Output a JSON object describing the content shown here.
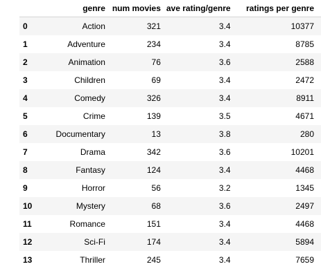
{
  "table": {
    "columns": [
      "",
      "genre",
      "num movies",
      "ave rating/genre",
      "ratings per genre"
    ],
    "rows": [
      {
        "index": "0",
        "genre": "Action",
        "num_movies": "321",
        "ave_rating": "3.4",
        "ratings": "10377"
      },
      {
        "index": "1",
        "genre": "Adventure",
        "num_movies": "234",
        "ave_rating": "3.4",
        "ratings": "8785"
      },
      {
        "index": "2",
        "genre": "Animation",
        "num_movies": "76",
        "ave_rating": "3.6",
        "ratings": "2588"
      },
      {
        "index": "3",
        "genre": "Children",
        "num_movies": "69",
        "ave_rating": "3.4",
        "ratings": "2472"
      },
      {
        "index": "4",
        "genre": "Comedy",
        "num_movies": "326",
        "ave_rating": "3.4",
        "ratings": "8911"
      },
      {
        "index": "5",
        "genre": "Crime",
        "num_movies": "139",
        "ave_rating": "3.5",
        "ratings": "4671"
      },
      {
        "index": "6",
        "genre": "Documentary",
        "num_movies": "13",
        "ave_rating": "3.8",
        "ratings": "280"
      },
      {
        "index": "7",
        "genre": "Drama",
        "num_movies": "342",
        "ave_rating": "3.6",
        "ratings": "10201"
      },
      {
        "index": "8",
        "genre": "Fantasy",
        "num_movies": "124",
        "ave_rating": "3.4",
        "ratings": "4468"
      },
      {
        "index": "9",
        "genre": "Horror",
        "num_movies": "56",
        "ave_rating": "3.2",
        "ratings": "1345"
      },
      {
        "index": "10",
        "genre": "Mystery",
        "num_movies": "68",
        "ave_rating": "3.6",
        "ratings": "2497"
      },
      {
        "index": "11",
        "genre": "Romance",
        "num_movies": "151",
        "ave_rating": "3.4",
        "ratings": "4468"
      },
      {
        "index": "12",
        "genre": "Sci-Fi",
        "num_movies": "174",
        "ave_rating": "3.4",
        "ratings": "5894"
      },
      {
        "index": "13",
        "genre": "Thriller",
        "num_movies": "245",
        "ave_rating": "3.4",
        "ratings": "7659"
      }
    ]
  },
  "colors": {
    "stripe": "#f5f5f5",
    "header_border": "#d4d4d4"
  }
}
